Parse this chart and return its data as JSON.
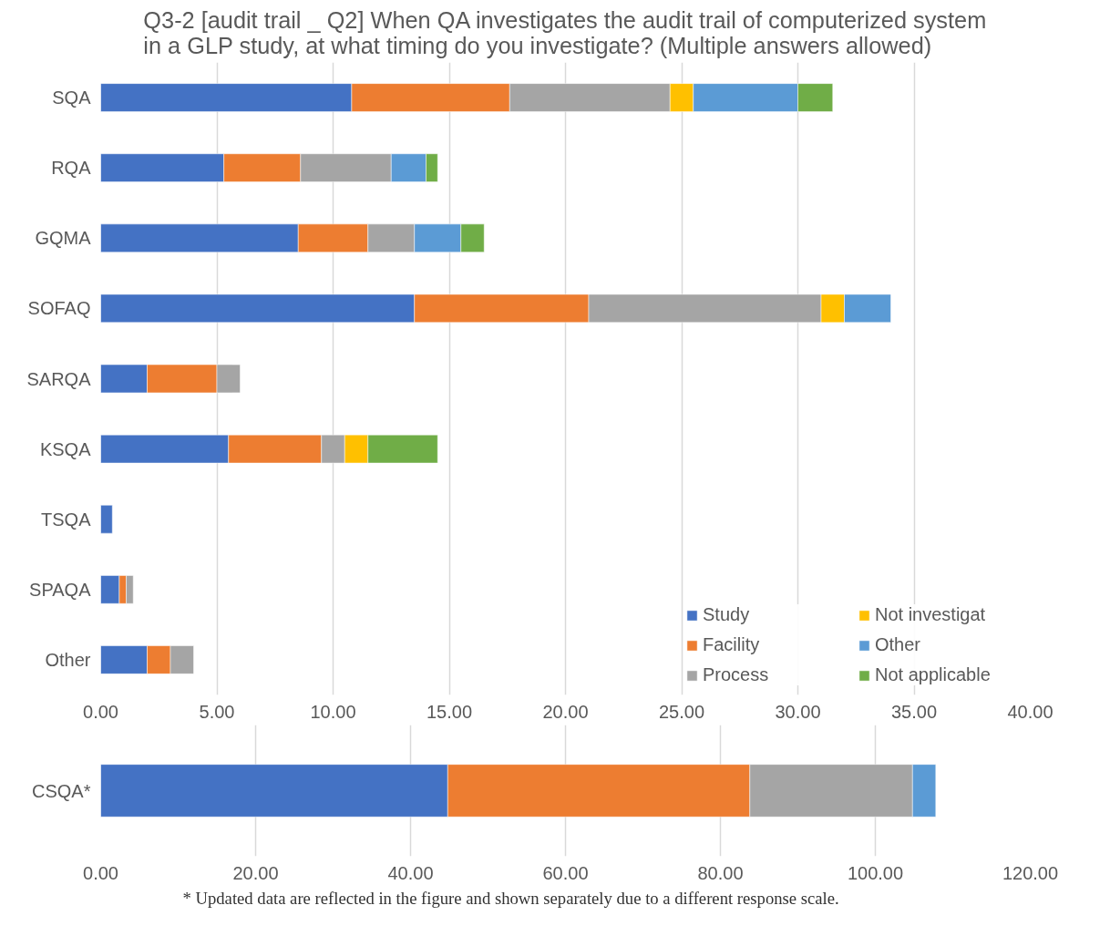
{
  "chart_data": [
    {
      "type": "bar",
      "orientation": "horizontal",
      "stacked": true,
      "title": "Q3-2 [audit trail _ Q2] When QA investigates the audit trail of computerized system in a GLP study, at what timing do you investigate? (Multiple answers allowed)",
      "categories": [
        "SQA",
        "RQA",
        "GQMA",
        "SOFAQ",
        "SARQA",
        "KSQA",
        "TSQA",
        "SPAQA",
        "Other"
      ],
      "series": [
        {
          "name": "Study",
          "color": "#4472c4",
          "values": [
            10.8,
            5.3,
            8.5,
            13.5,
            2,
            5.5,
            0.5,
            0.8,
            2
          ]
        },
        {
          "name": "Facility",
          "color": "#ed7d31",
          "values": [
            6.8,
            3.3,
            3,
            7.5,
            3,
            4,
            null,
            0.3,
            1
          ]
        },
        {
          "name": "Process",
          "color": "#a5a5a5",
          "values": [
            6.9,
            3.9,
            2,
            10,
            1,
            1,
            null,
            0.3,
            1
          ]
        },
        {
          "name": "Not investigat",
          "color": "#ffc000",
          "values": [
            1,
            null,
            null,
            1,
            null,
            1,
            null,
            null,
            null
          ]
        },
        {
          "name": "Other",
          "color": "#5b9bd5",
          "values": [
            4.5,
            1.5,
            2,
            2,
            null,
            null,
            null,
            null,
            null
          ]
        },
        {
          "name": "Not applicable",
          "color": "#70ad47",
          "values": [
            1.5,
            0.5,
            1,
            null,
            null,
            3,
            null,
            null,
            null
          ]
        }
      ],
      "xlim": [
        0,
        40
      ],
      "xticks": [
        {
          "value": 0,
          "label": "0.00"
        },
        {
          "value": 5,
          "label": "5.00"
        },
        {
          "value": 10,
          "label": "10.00"
        },
        {
          "value": 15,
          "label": "15.00"
        },
        {
          "value": 20,
          "label": "20.00"
        },
        {
          "value": 25,
          "label": "25.00"
        },
        {
          "value": 30,
          "label": "30.00"
        },
        {
          "value": 35,
          "label": "35.00"
        },
        {
          "value": 40,
          "label": "40.00"
        }
      ],
      "grid": "x",
      "legend": "bottom right"
    },
    {
      "type": "bar",
      "orientation": "horizontal",
      "stacked": true,
      "categories": [
        "CSQA*"
      ],
      "series": [
        {
          "color": "#4472c4",
          "values": [
            44.8
          ]
        },
        {
          "color": "#ed7d31",
          "values": [
            39
          ]
        },
        {
          "color": "#a5a5a5",
          "values": [
            21
          ]
        },
        {
          "color": "#5b9bd5",
          "values": [
            3
          ]
        }
      ],
      "xlim": [
        0,
        120
      ],
      "xticks": [
        {
          "value": 0,
          "label": "0.00"
        },
        {
          "value": 20,
          "label": "20.00"
        },
        {
          "value": 40,
          "label": "40.00"
        },
        {
          "value": 60,
          "label": "60.00"
        },
        {
          "value": 80,
          "label": "80.00"
        },
        {
          "value": 100,
          "label": "100.00"
        },
        {
          "value": 120,
          "label": "120.00"
        }
      ],
      "grid": "x",
      "annotations": [
        "* Updated data are reflected in the figure and shown separately due to a different response scale."
      ]
    }
  ]
}
